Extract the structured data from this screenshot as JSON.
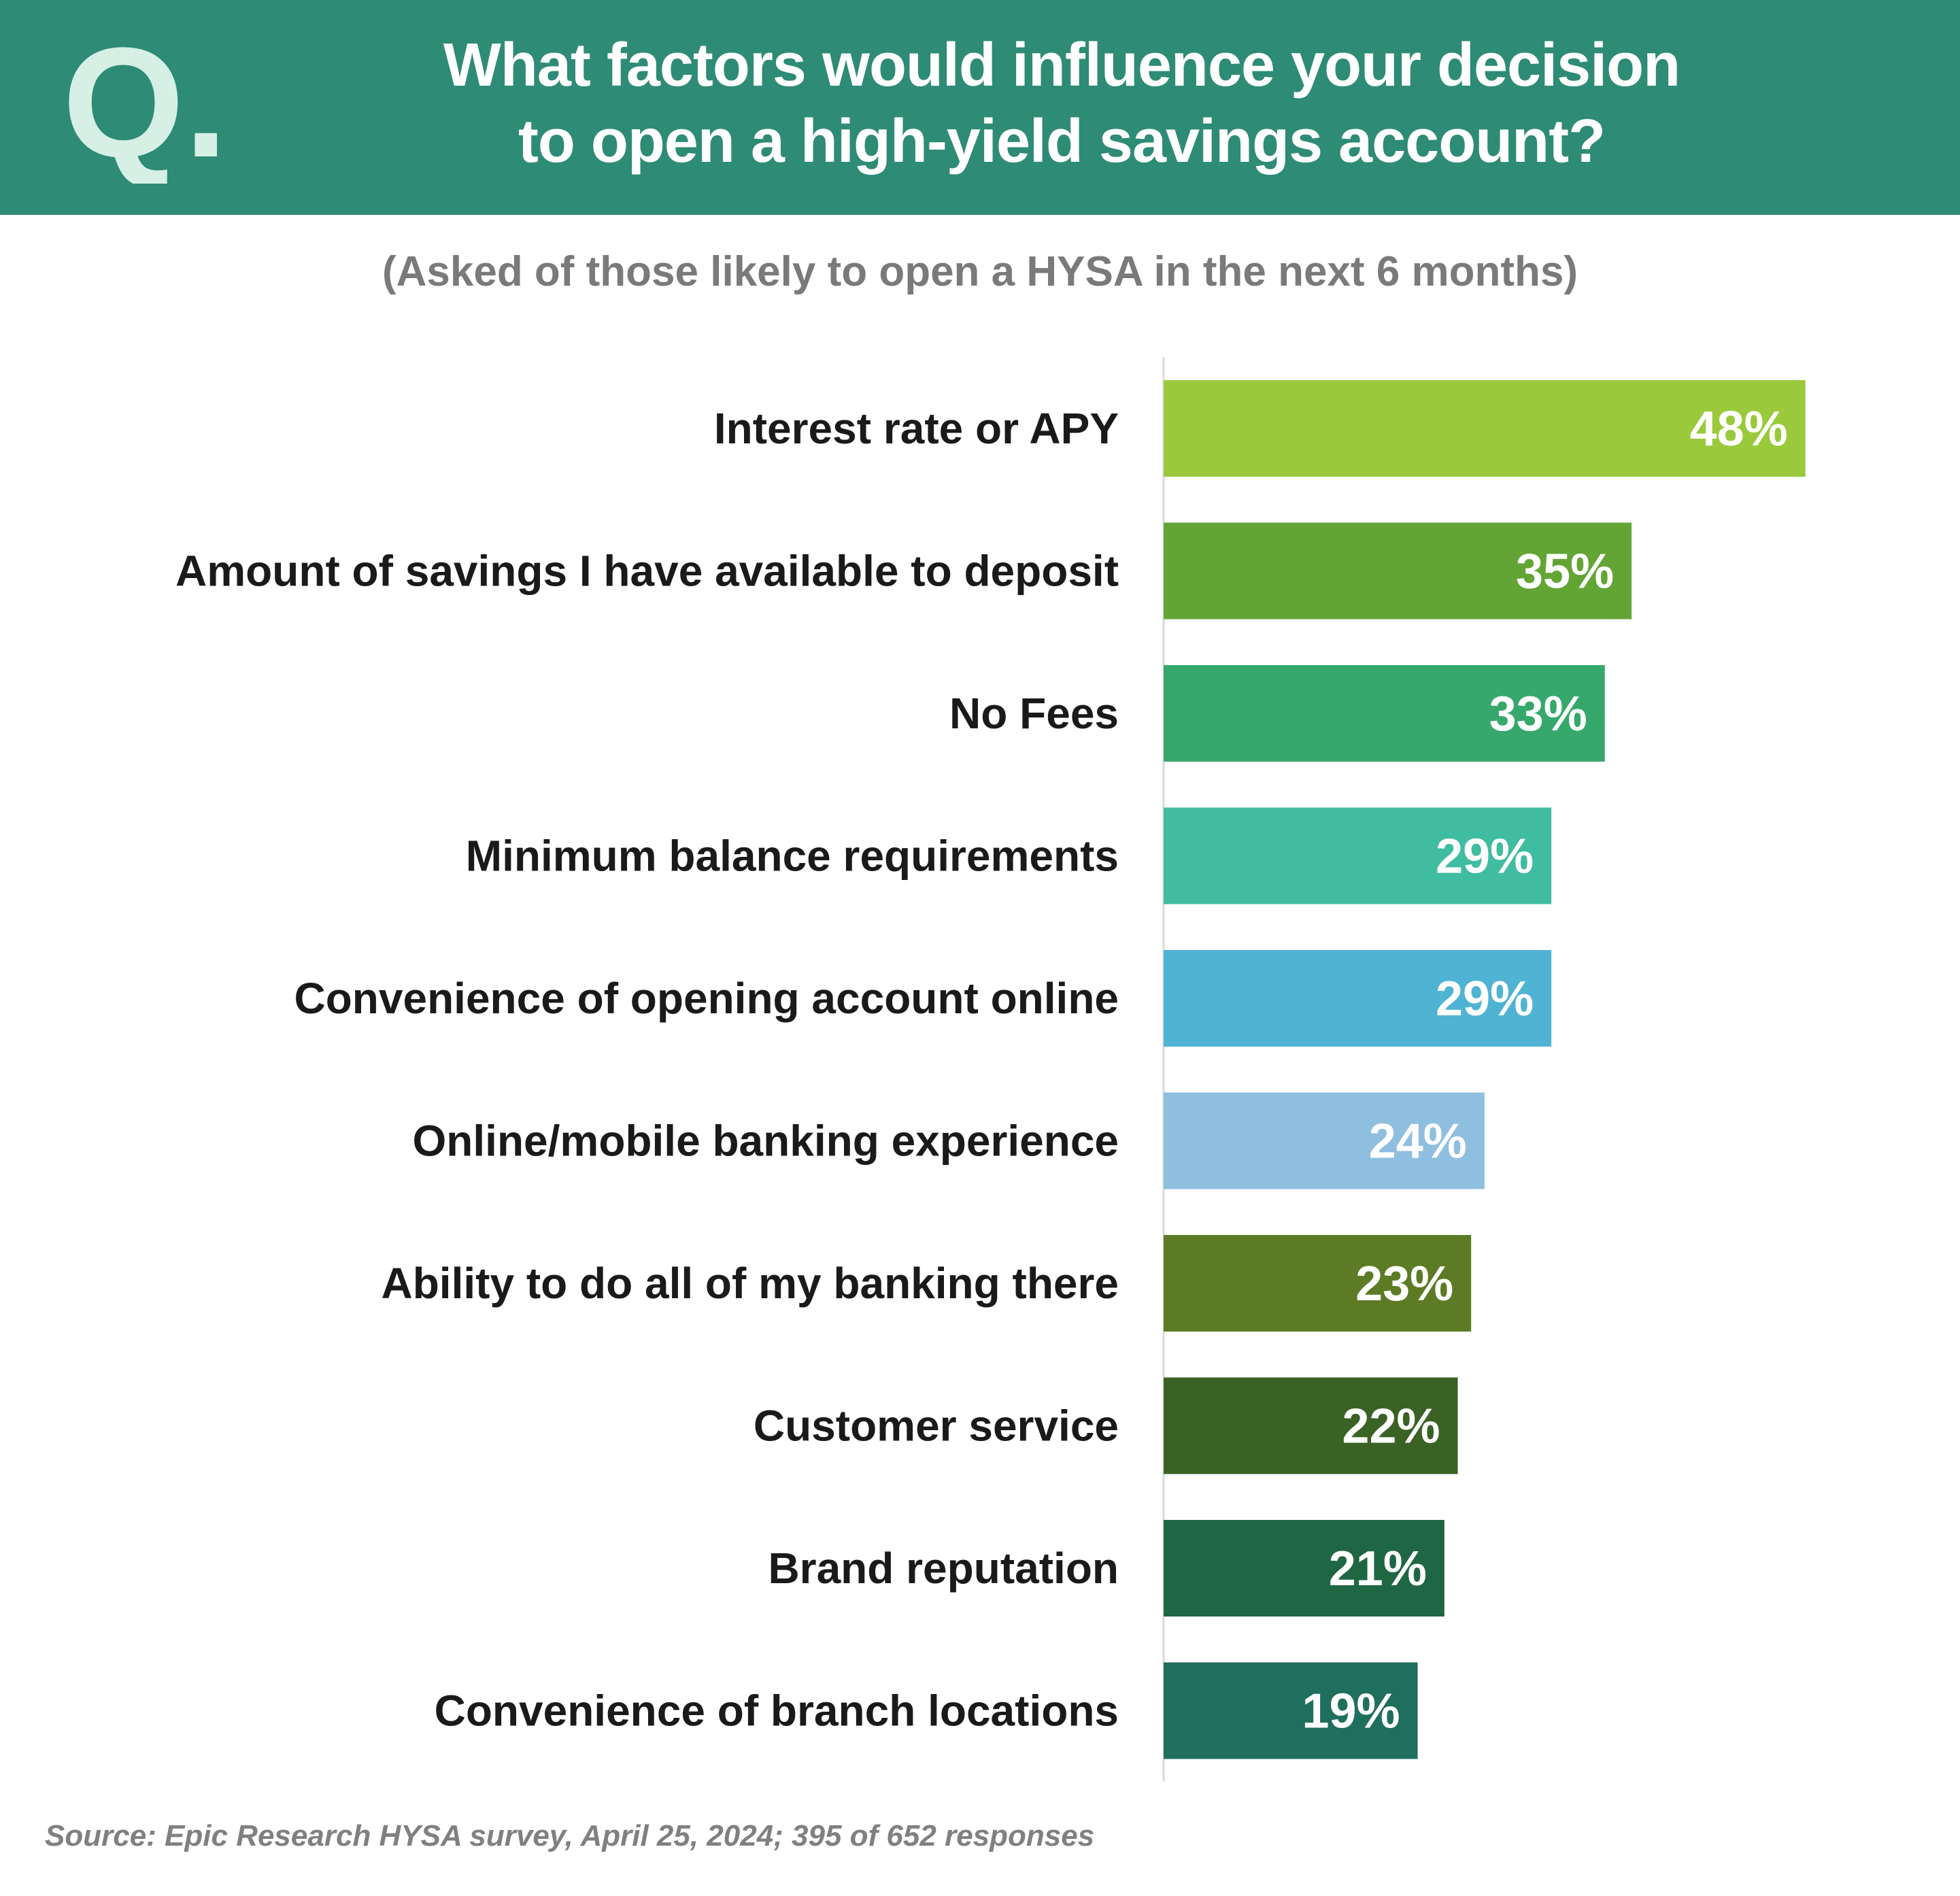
{
  "header": {
    "logo_letter": "Q.",
    "title_line1": "What factors would influence your decision",
    "title_line2": "to open a high-yield savings account?",
    "background_color": "#2e8b76",
    "logo_color": "#d6f0e6"
  },
  "subtitle": "(Asked of those likely to open a HYSA in the next 6 months)",
  "source": "Source: Epic Research HYSA survey, April 25, 2024; 395 of 652 responses",
  "chart_data": {
    "type": "bar",
    "orientation": "horizontal",
    "title": "What factors would influence your decision to open a high-yield savings account?",
    "subtitle": "(Asked of those likely to open a HYSA in the next 6 months)",
    "unit": "%",
    "xlim": [
      0,
      100
    ],
    "grid": false,
    "categories": [
      "Interest rate or APY",
      "Amount of savings I have available to deposit",
      "No Fees",
      "Minimum balance requirements",
      "Convenience of opening account online",
      "Online/mobile banking experience",
      "Ability to do all of my banking there",
      "Customer service",
      "Brand reputation",
      "Convenience of branch locations"
    ],
    "values": [
      48,
      35,
      33,
      29,
      29,
      24,
      23,
      22,
      21,
      19
    ],
    "value_labels": [
      "48%",
      "35%",
      "33%",
      "29%",
      "29%",
      "24%",
      "23%",
      "22%",
      "21%",
      "19%"
    ],
    "colors": [
      "#9aca3c",
      "#63a534",
      "#37a86c",
      "#40bca0",
      "#4fb3d3",
      "#8fbfdf",
      "#5d7b24",
      "#3a6224",
      "#1f6642",
      "#1f6e5e"
    ]
  }
}
